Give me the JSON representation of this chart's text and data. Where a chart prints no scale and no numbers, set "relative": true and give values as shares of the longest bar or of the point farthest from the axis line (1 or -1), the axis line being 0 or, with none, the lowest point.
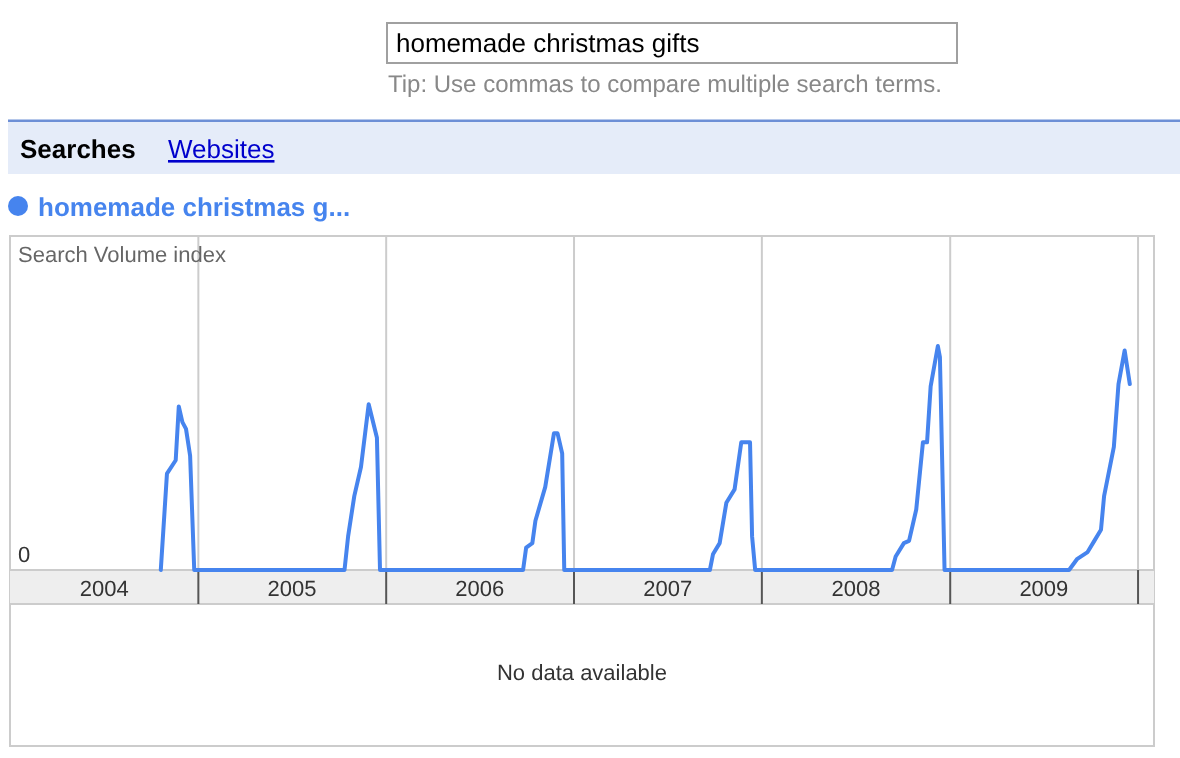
{
  "chart_data": {
    "type": "line",
    "ylabel": "Search Volume index",
    "relative": true,
    "grid": "x",
    "legend": "top left",
    "marker": "none",
    "line_style": "solid",
    "xlim": [
      "2004-01-01",
      "2010-02-01"
    ],
    "xticks": [
      {
        "value": "2004-07-02",
        "label": "2004"
      },
      {
        "value": "2005-01-01",
        "label": null
      },
      {
        "value": "2005-07-02",
        "label": "2005"
      },
      {
        "value": "2006-01-01",
        "label": null
      },
      {
        "value": "2006-07-02",
        "label": "2006"
      },
      {
        "value": "2007-01-01",
        "label": null
      },
      {
        "value": "2007-07-02",
        "label": "2007"
      },
      {
        "value": "2008-01-01",
        "label": null
      },
      {
        "value": "2008-07-02",
        "label": "2008"
      },
      {
        "value": "2009-01-01",
        "label": null
      },
      {
        "value": "2009-07-02",
        "label": "2009"
      },
      {
        "value": "2010-01-01",
        "label": null
      }
    ],
    "annotations": [
      "homemade christmas gifts",
      "Tip: Use commas to compare multiple search terms.",
      "Searches",
      "Websites",
      "0",
      "No data available"
    ],
    "series": [
      {
        "name": "homemade christmas g...",
        "color": "#4684ee",
        "x": [
          "2004-10-20",
          "2004-11-01",
          "2004-11-18",
          "2004-11-24",
          "2004-12-01",
          "2004-12-08",
          "2004-12-16",
          "2004-12-24",
          "2005-10-12",
          "2005-10-19",
          "2005-10-31",
          "2005-11-13",
          "2005-11-28",
          "2005-12-14",
          "2005-12-20",
          "2006-09-24",
          "2006-09-30",
          "2006-10-12",
          "2006-10-18",
          "2006-11-06",
          "2006-11-23",
          "2006-11-30",
          "2006-12-09",
          "2006-12-13",
          "2007-09-22",
          "2007-09-28",
          "2007-10-11",
          "2007-10-24",
          "2007-11-09",
          "2007-11-22",
          "2007-12-09",
          "2007-12-13",
          "2007-12-19",
          "2008-09-10",
          "2008-09-17",
          "2008-10-03",
          "2008-10-13",
          "2008-10-27",
          "2008-11-09",
          "2008-11-17",
          "2008-11-24",
          "2008-12-08",
          "2008-12-12",
          "2008-12-21",
          "2009-08-20",
          "2009-09-05",
          "2009-09-25",
          "2009-10-08",
          "2009-10-21",
          "2009-10-27",
          "2009-11-15",
          "2009-11-24",
          "2009-12-06",
          "2009-12-16"
        ],
        "values": [
          0,
          0.43,
          0.49,
          0.73,
          0.66,
          0.63,
          0.51,
          0,
          0,
          0.15,
          0.33,
          0.46,
          0.74,
          0.59,
          0,
          0,
          0.1,
          0.12,
          0.22,
          0.37,
          0.61,
          0.61,
          0.52,
          0,
          0,
          0.07,
          0.12,
          0.3,
          0.36,
          0.57,
          0.57,
          0.15,
          0,
          0,
          0.06,
          0.12,
          0.13,
          0.27,
          0.57,
          0.57,
          0.82,
          1,
          0.95,
          0,
          0,
          0.05,
          0.08,
          0.13,
          0.18,
          0.33,
          0.55,
          0.83,
          0.98,
          0.83
        ]
      }
    ]
  }
}
